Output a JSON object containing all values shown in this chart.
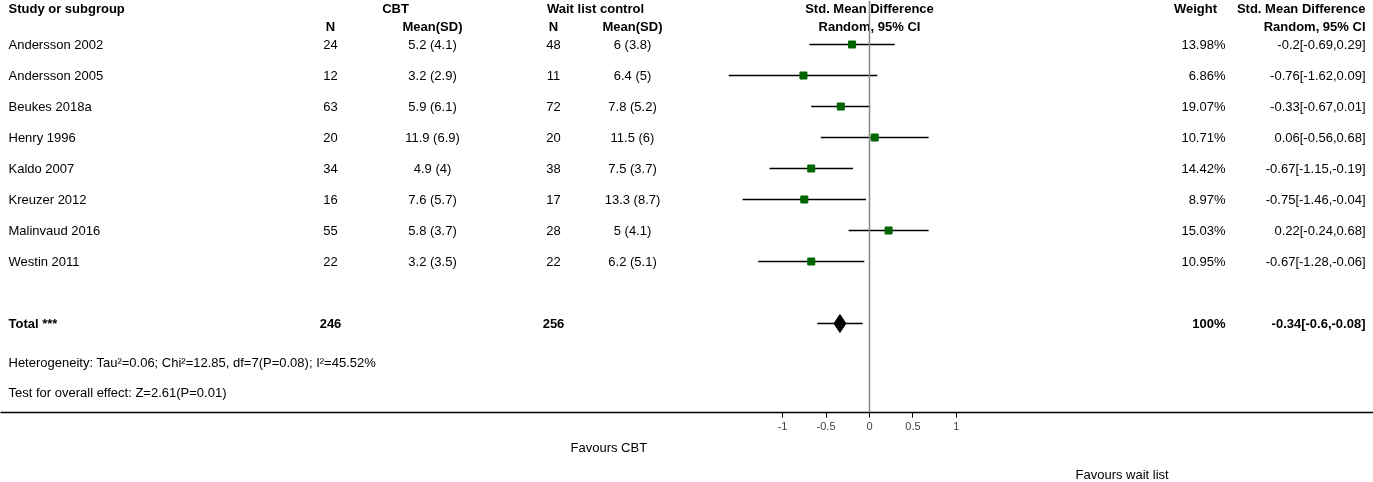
{
  "chart_data": {
    "type": "scatter",
    "orientation": "horizontal",
    "grid": false,
    "categories": [
      "Andersson 2002",
      "Andersson 2005",
      "Beukes 2018a",
      "Henry 1996",
      "Kaldo 2007",
      "Kreuzer 2012",
      "Malinvaud 2016",
      "Westin 2011",
      null,
      "Total ***"
    ],
    "series": [
      {
        "color": "#006400",
        "marker": "square",
        "values": [
          -0.2,
          -0.76,
          -0.33,
          0.06,
          -0.67,
          -0.75,
          0.22,
          -0.67,
          null,
          null
        ],
        "errors": [
          [
            -0.69,
            0.29
          ],
          [
            -1.62,
            0.09
          ],
          [
            -0.67,
            0.01
          ],
          [
            -0.56,
            0.68
          ],
          [
            -1.15,
            -0.19
          ],
          [
            -1.46,
            -0.04
          ],
          [
            -0.24,
            0.68
          ],
          [
            -1.28,
            -0.06
          ],
          null,
          null
        ]
      },
      {
        "color": "#000000",
        "marker": "diamond",
        "values": [
          null,
          null,
          null,
          null,
          null,
          null,
          null,
          null,
          null,
          -0.34
        ],
        "errors": [
          null,
          null,
          null,
          null,
          null,
          null,
          null,
          null,
          null,
          [
            -0.6,
            -0.08
          ]
        ]
      }
    ],
    "xlim": [
      -10,
      5.8
    ],
    "xticks": [
      -1,
      -0.5,
      0,
      0.5,
      1
    ],
    "ref_lines": [
      {
        "axis": "x",
        "value": 0,
        "color": "#888888"
      }
    ],
    "annotations": [
      "Study or subgroup",
      "CBT",
      "Wait list control",
      "Std. Mean Difference",
      "Weight",
      "Std. Mean Difference",
      "N",
      "Mean(SD)",
      "N",
      "Mean(SD)",
      "Random, 95% CI",
      "Random, 95% CI",
      "Heterogeneity: Tau²=0.06; Chi²=12.85, df=7(P=0.08); I²=45.52%",
      "Test for overall effect: Z=2.61(P=0.01)",
      "Favours CBT",
      "Favours wait list",
      "24",
      "5.2 (4.1)",
      "48",
      "6 (3.8)",
      "13.98%",
      "-0.2[-0.69,0.29]",
      "12",
      "3.2 (2.9)",
      "11",
      "6.4 (5)",
      "6.86%",
      "-0.76[-1.62,0.09]",
      "63",
      "5.9 (6.1)",
      "72",
      "7.8 (5.2)",
      "19.07%",
      "-0.33[-0.67,0.01]",
      "20",
      "11.9 (6.9)",
      "20",
      "11.5 (6)",
      "10.71%",
      "0.06[-0.56,0.68]",
      "34",
      "4.9 (4)",
      "38",
      "7.5 (3.7)",
      "14.42%",
      "-0.67[-1.15,-0.19]",
      "16",
      "7.6 (5.7)",
      "17",
      "13.3 (8.7)",
      "8.97%",
      "-0.75[-1.46,-0.04]",
      "55",
      "5.8 (3.7)",
      "28",
      "5 (4.1)",
      "15.03%",
      "0.22[-0.24,0.68]",
      "22",
      "3.2 (3.5)",
      "22",
      "6.2 (5.1)",
      "10.95%",
      "-0.67[-1.28,-0.06]",
      "246",
      "256",
      "100%",
      "-0.34[-0.6,-0.08]"
    ]
  }
}
